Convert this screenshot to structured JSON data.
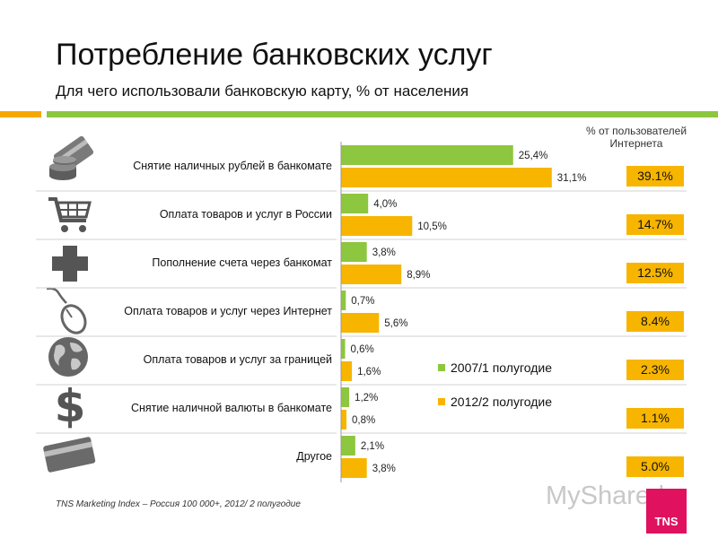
{
  "header": {
    "title": "Потребление банковских услуг",
    "subtitle": "Для чего использовали банковскую карту, % от населения"
  },
  "users_header": {
    "line1": "% от пользователей",
    "line2": "Интернета"
  },
  "colors": {
    "series_2007": "#8dc63f",
    "series_2012": "#f7b500",
    "badge": "#f7b500",
    "accent_orange": "#f5a800",
    "accent_green": "#8dc63f",
    "tns": "#e0115f"
  },
  "chart_data": {
    "type": "bar",
    "orientation": "horizontal",
    "title": "Для чего использовали банковскую карту, % от населения",
    "xlabel": "",
    "ylabel": "",
    "xlim": [
      0,
      40
    ],
    "categories": [
      "Снятие наличных рублей в банкомате",
      "Оплата товаров и услуг в России",
      "Пополнение счета через банкомат",
      "Оплата товаров и услуг через Интернет",
      "Оплата товаров и услуг за границей",
      "Снятие наличной валюты в банкомате",
      "Другое"
    ],
    "series": [
      {
        "name": "2007/1 полугодие",
        "values": [
          25.4,
          4.0,
          3.8,
          0.7,
          0.6,
          1.2,
          2.1
        ],
        "labels": [
          "25,4%",
          "4,0%",
          "3,8%",
          "0,7%",
          "0,6%",
          "1,2%",
          "2,1%"
        ]
      },
      {
        "name": "2012/2 полугодие",
        "values": [
          31.1,
          10.5,
          8.9,
          5.6,
          1.6,
          0.8,
          3.8
        ],
        "labels": [
          "31,1%",
          "10,5%",
          "8,9%",
          "5,6%",
          "1,6%",
          "0,8%",
          "3,8%"
        ]
      }
    ],
    "internet_users_pct": [
      "39.1%",
      "14.7%",
      "12.5%",
      "8.4%",
      "2.3%",
      "1.1%",
      "5.0%"
    ],
    "legend_position": "center-right"
  },
  "category_icons": [
    "coins-card-icon",
    "shopping-cart-icon",
    "plus-cross-icon",
    "mouse-icon",
    "globe-icon",
    "dollar-icon",
    "credit-card-icon"
  ],
  "footer": {
    "source": "TNS Marketing Index – Россия 100 000+, 2012/ 2 полугодие",
    "watermark": "MyShared",
    "logo": "TNS"
  }
}
